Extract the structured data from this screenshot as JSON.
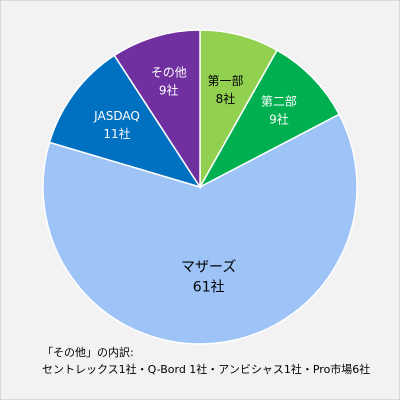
{
  "chart_data": {
    "type": "pie",
    "start_angle_deg": 0,
    "direction": "clockwise",
    "slices": [
      {
        "category": "第一部",
        "value_label": "8社",
        "value": 8,
        "color": "#92d050",
        "label_color": "#000000"
      },
      {
        "category": "第二部",
        "value_label": "9社",
        "value": 9,
        "color": "#00b050",
        "label_color": "#ffffff"
      },
      {
        "category": "マザーズ",
        "value_label": "61社",
        "value": 61,
        "color": "#9dc3f7",
        "label_color": "#000000"
      },
      {
        "category": "JASDAQ",
        "value_label": "11社",
        "value": 11,
        "color": "#0070c0",
        "label_color": "#ffffff"
      },
      {
        "category": "その他",
        "value_label": "9社",
        "value": 9,
        "color": "#7030a0",
        "label_color": "#ffffff"
      }
    ]
  },
  "footnote": {
    "line1": "「その他」の内訳:",
    "line2": "セントレックス1社・Q-Bord 1社・アンビシャス1社・Pro市場6社"
  }
}
